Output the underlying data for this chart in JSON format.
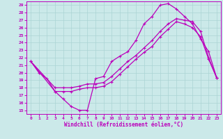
{
  "xlabel": "Windchill (Refroidissement éolien,°C)",
  "xlim": [
    -0.5,
    23.5
  ],
  "ylim": [
    14.5,
    29.5
  ],
  "xticks": [
    0,
    1,
    2,
    3,
    4,
    5,
    6,
    7,
    8,
    9,
    10,
    11,
    12,
    13,
    14,
    15,
    16,
    17,
    18,
    19,
    20,
    21,
    22,
    23
  ],
  "yticks": [
    15,
    16,
    17,
    18,
    19,
    20,
    21,
    22,
    23,
    24,
    25,
    26,
    27,
    28,
    29
  ],
  "bg_color": "#cbe9e9",
  "grid_color": "#aad4d4",
  "line_color": "#bb00bb",
  "line1_x": [
    0,
    1,
    2,
    3,
    4,
    5,
    6,
    7,
    8,
    9,
    10,
    11,
    12,
    13,
    14,
    15,
    16,
    17,
    18,
    19,
    20,
    21,
    22,
    23
  ],
  "line1_y": [
    21.5,
    20.0,
    19.2,
    17.5,
    16.5,
    15.5,
    15.0,
    15.0,
    19.2,
    19.5,
    21.5,
    22.2,
    22.8,
    24.3,
    26.5,
    27.5,
    29.0,
    29.2,
    28.5,
    27.5,
    26.5,
    24.5,
    22.8,
    19.3
  ],
  "line2_x": [
    0,
    3,
    4,
    5,
    6,
    7,
    8,
    9,
    10,
    11,
    12,
    13,
    14,
    15,
    16,
    17,
    18,
    19,
    20,
    21,
    22,
    23
  ],
  "line2_y": [
    21.5,
    18.0,
    18.0,
    18.0,
    18.2,
    18.5,
    18.5,
    18.7,
    19.5,
    20.5,
    21.5,
    22.3,
    23.3,
    24.3,
    25.5,
    26.5,
    27.2,
    27.0,
    26.8,
    25.5,
    22.0,
    19.3
  ],
  "line3_x": [
    0,
    3,
    4,
    5,
    6,
    7,
    8,
    9,
    10,
    11,
    12,
    13,
    14,
    15,
    16,
    17,
    18,
    19,
    20,
    21,
    22,
    23
  ],
  "line3_y": [
    21.5,
    17.5,
    17.5,
    17.5,
    17.8,
    18.0,
    18.0,
    18.2,
    18.8,
    19.8,
    20.8,
    21.8,
    22.7,
    23.5,
    24.8,
    25.8,
    26.8,
    26.5,
    26.0,
    24.8,
    21.8,
    19.3
  ]
}
